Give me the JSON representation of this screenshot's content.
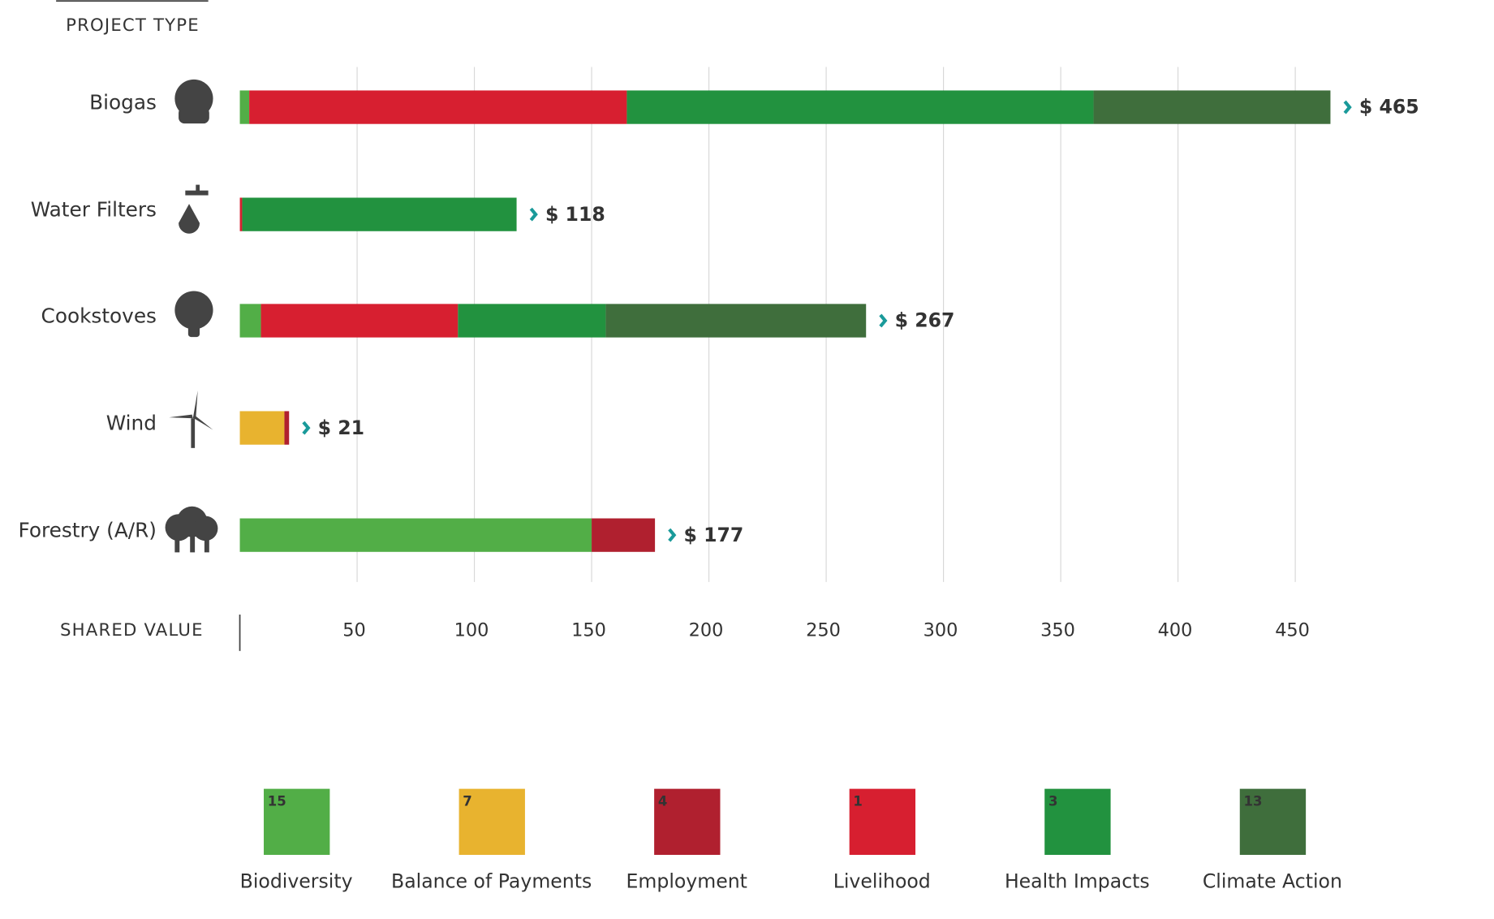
{
  "chart_data": {
    "type": "stacked-bar-horizontal",
    "y_axis_label": "PROJECT TYPE",
    "x_axis_label": "SHARED VALUE",
    "categories": [
      "Biogas",
      "Water Filters",
      "Cookstoves",
      "Wind",
      "Forestry (A/R)"
    ],
    "series": [
      {
        "name": "Biodiversity",
        "goal": "15",
        "color": "#52ae47",
        "values": [
          4,
          0,
          9,
          0,
          150
        ]
      },
      {
        "name": "Balance of Payments",
        "goal": "7",
        "color": "#e8b32f",
        "values": [
          0,
          0,
          0,
          19,
          0
        ]
      },
      {
        "name": "Employment",
        "goal": "4",
        "color": "#b0202f",
        "values": [
          0,
          0,
          0,
          2,
          27
        ]
      },
      {
        "name": "Livelihood",
        "goal": "1",
        "color": "#d71f30",
        "values": [
          161,
          1,
          84,
          0,
          0
        ]
      },
      {
        "name": "Health Impacts",
        "goal": "3",
        "color": "#22923f",
        "values": [
          199,
          117,
          63,
          0,
          0
        ]
      },
      {
        "name": "Climate Action",
        "goal": "13",
        "color": "#3f6e3c",
        "values": [
          101,
          0,
          111,
          0,
          0
        ]
      }
    ],
    "totals": [
      465,
      118,
      267,
      21,
      177
    ],
    "total_labels": [
      "$ 465",
      "$ 118",
      "$ 267",
      "$ 21",
      "$ 177"
    ],
    "total_color": "#1a9a9a",
    "xlim": [
      0,
      480
    ],
    "xticks": [
      50,
      100,
      150,
      200,
      250,
      300,
      350,
      400,
      450
    ],
    "grid": true
  }
}
